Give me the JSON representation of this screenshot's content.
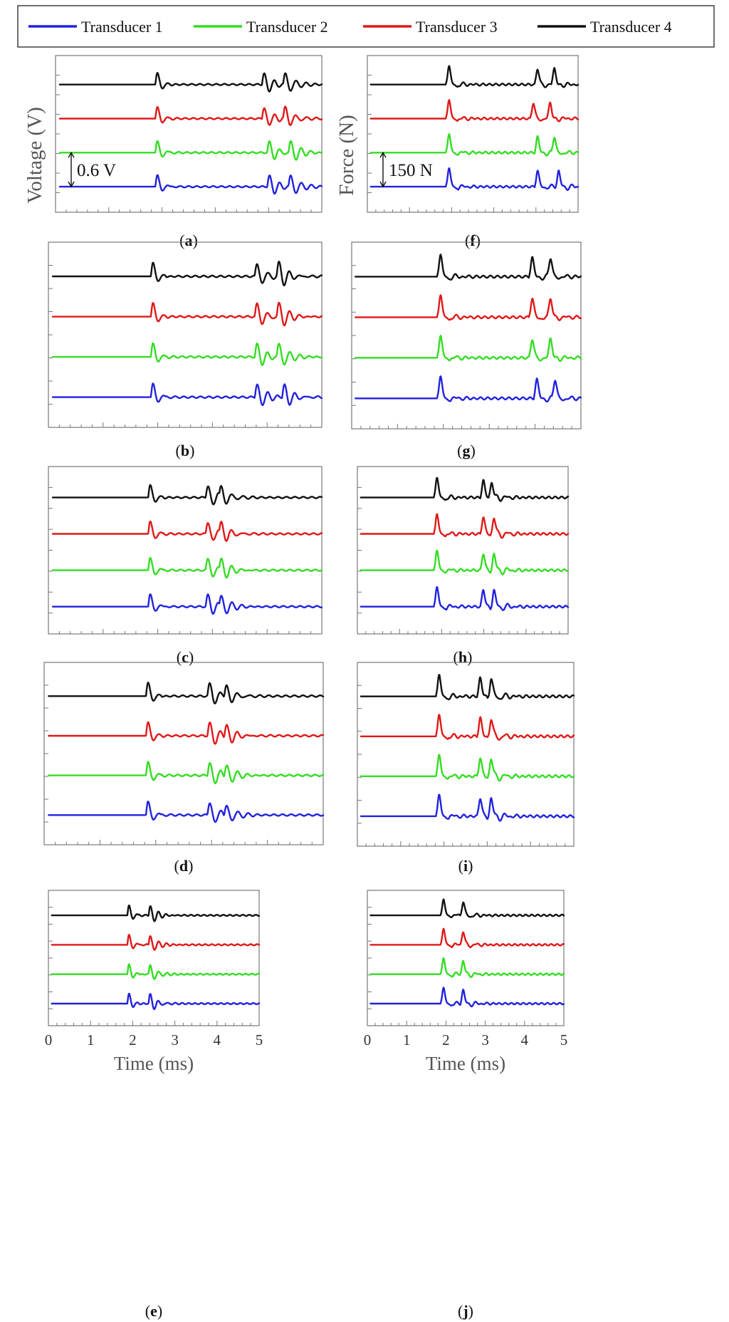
{
  "legend": {
    "entries": [
      {
        "label": "Transducer 1",
        "color": "#2222dd"
      },
      {
        "label": "Transducer 2",
        "color": "#33dd22"
      },
      {
        "label": "Transducer 3",
        "color": "#e01818"
      },
      {
        "label": "Transducer 4",
        "color": "#111111"
      }
    ]
  },
  "chart_data": [
    {
      "id": "a",
      "panel_label": "a",
      "type": "line",
      "quantity": "voltage",
      "ylabel": "Voltage (V)",
      "xlabel": "",
      "xlim": [
        0,
        5
      ],
      "show_x_ticklabels": false,
      "scale_bar_label": "0.6 V",
      "scale_bar_value": 0.6,
      "grid": false,
      "series": [
        {
          "color": "#2222dd",
          "pulses_ms": [
            1.9,
            4.0,
            4.4
          ]
        },
        {
          "color": "#33dd22",
          "pulses_ms": [
            1.9,
            4.0,
            4.4
          ]
        },
        {
          "color": "#e01818",
          "pulses_ms": [
            1.9,
            3.9,
            4.3
          ]
        },
        {
          "color": "#111111",
          "pulses_ms": [
            1.9,
            3.9,
            4.3
          ]
        }
      ]
    },
    {
      "id": "b",
      "panel_label": "b",
      "type": "line",
      "quantity": "voltage",
      "xlim": [
        0,
        5
      ],
      "show_x_ticklabels": false,
      "grid": false,
      "series": [
        {
          "color": "#2222dd",
          "pulses_ms": [
            1.9,
            3.8,
            4.3
          ]
        },
        {
          "color": "#33dd22",
          "pulses_ms": [
            1.9,
            3.8,
            4.2
          ]
        },
        {
          "color": "#e01818",
          "pulses_ms": [
            1.9,
            3.8,
            4.2
          ]
        },
        {
          "color": "#111111",
          "pulses_ms": [
            1.9,
            3.8,
            4.2
          ]
        }
      ]
    },
    {
      "id": "c",
      "panel_label": "c",
      "type": "line",
      "quantity": "voltage",
      "xlim": [
        0,
        5
      ],
      "show_x_ticklabels": false,
      "grid": false,
      "series": [
        {
          "color": "#2222dd",
          "pulses_ms": [
            1.85,
            2.9,
            3.15
          ]
        },
        {
          "color": "#33dd22",
          "pulses_ms": [
            1.85,
            2.9,
            3.15
          ]
        },
        {
          "color": "#e01818",
          "pulses_ms": [
            1.85,
            2.9,
            3.15
          ]
        },
        {
          "color": "#111111",
          "pulses_ms": [
            1.85,
            2.9,
            3.15
          ]
        }
      ]
    },
    {
      "id": "d",
      "panel_label": "d",
      "type": "line",
      "quantity": "voltage",
      "xlim": [
        0,
        5
      ],
      "show_x_ticklabels": false,
      "grid": false,
      "series": [
        {
          "color": "#2222dd",
          "pulses_ms": [
            1.85,
            2.95,
            3.25
          ]
        },
        {
          "color": "#33dd22",
          "pulses_ms": [
            1.85,
            2.95,
            3.25
          ]
        },
        {
          "color": "#e01818",
          "pulses_ms": [
            1.85,
            2.95,
            3.25
          ]
        },
        {
          "color": "#111111",
          "pulses_ms": [
            1.85,
            2.95,
            3.25
          ]
        }
      ]
    },
    {
      "id": "e",
      "panel_label": "e",
      "type": "line",
      "quantity": "voltage",
      "xlabel": "Time (ms)",
      "xlim": [
        0,
        5
      ],
      "xticks": [
        "0",
        "1",
        "2",
        "3",
        "4",
        "5"
      ],
      "show_x_ticklabels": true,
      "grid": false,
      "series": [
        {
          "color": "#2222dd",
          "pulses_ms": [
            1.9,
            2.4
          ]
        },
        {
          "color": "#33dd22",
          "pulses_ms": [
            1.9,
            2.4
          ]
        },
        {
          "color": "#e01818",
          "pulses_ms": [
            1.9,
            2.4
          ]
        },
        {
          "color": "#111111",
          "pulses_ms": [
            1.9,
            2.4
          ]
        }
      ]
    },
    {
      "id": "f",
      "panel_label": "f",
      "type": "line",
      "quantity": "force",
      "ylabel": "Force (N)",
      "xlabel": "",
      "xlim": [
        0,
        5
      ],
      "show_x_ticklabels": false,
      "scale_bar_label": "150 N",
      "scale_bar_value": 150,
      "grid": false,
      "series": [
        {
          "color": "#2222dd",
          "pulses_ms": [
            1.9,
            4.0,
            4.5
          ]
        },
        {
          "color": "#33dd22",
          "pulses_ms": [
            1.9,
            4.0,
            4.4
          ]
        },
        {
          "color": "#e01818",
          "pulses_ms": [
            1.9,
            3.9,
            4.3
          ]
        },
        {
          "color": "#111111",
          "pulses_ms": [
            1.9,
            4.0,
            4.4
          ]
        }
      ]
    },
    {
      "id": "g",
      "panel_label": "g",
      "type": "line",
      "quantity": "force",
      "xlim": [
        0,
        5
      ],
      "show_x_ticklabels": false,
      "grid": false,
      "series": [
        {
          "color": "#2222dd",
          "pulses_ms": [
            1.9,
            4.0,
            4.4
          ]
        },
        {
          "color": "#33dd22",
          "pulses_ms": [
            1.9,
            3.9,
            4.3
          ]
        },
        {
          "color": "#e01818",
          "pulses_ms": [
            1.9,
            3.9,
            4.3
          ]
        },
        {
          "color": "#111111",
          "pulses_ms": [
            1.9,
            3.9,
            4.3
          ]
        }
      ]
    },
    {
      "id": "h",
      "panel_label": "h",
      "type": "line",
      "quantity": "force",
      "xlim": [
        0,
        5
      ],
      "show_x_ticklabels": false,
      "grid": false,
      "series": [
        {
          "color": "#2222dd",
          "pulses_ms": [
            1.85,
            2.95,
            3.2
          ]
        },
        {
          "color": "#33dd22",
          "pulses_ms": [
            1.85,
            2.95,
            3.2
          ]
        },
        {
          "color": "#e01818",
          "pulses_ms": [
            1.85,
            2.95,
            3.2
          ]
        },
        {
          "color": "#111111",
          "pulses_ms": [
            1.85,
            2.95,
            3.15
          ]
        }
      ]
    },
    {
      "id": "i",
      "panel_label": "i",
      "type": "line",
      "quantity": "force",
      "xlim": [
        0,
        5
      ],
      "show_x_ticklabels": false,
      "grid": false,
      "series": [
        {
          "color": "#2222dd",
          "pulses_ms": [
            1.85,
            2.8,
            3.05
          ]
        },
        {
          "color": "#33dd22",
          "pulses_ms": [
            1.85,
            2.8,
            3.05
          ]
        },
        {
          "color": "#e01818",
          "pulses_ms": [
            1.85,
            2.8,
            3.05
          ]
        },
        {
          "color": "#111111",
          "pulses_ms": [
            1.85,
            2.8,
            3.05
          ]
        }
      ]
    },
    {
      "id": "j",
      "panel_label": "j",
      "type": "line",
      "quantity": "force",
      "xlabel": "Time (ms)",
      "xlim": [
        0,
        5
      ],
      "xticks": [
        "0",
        "1",
        "2",
        "3",
        "4",
        "5"
      ],
      "show_x_ticklabels": true,
      "grid": false,
      "series": [
        {
          "color": "#2222dd",
          "pulses_ms": [
            1.9,
            2.4
          ]
        },
        {
          "color": "#33dd22",
          "pulses_ms": [
            1.9,
            2.4
          ]
        },
        {
          "color": "#e01818",
          "pulses_ms": [
            1.9,
            2.4
          ]
        },
        {
          "color": "#111111",
          "pulses_ms": [
            1.9,
            2.4
          ]
        }
      ]
    }
  ]
}
